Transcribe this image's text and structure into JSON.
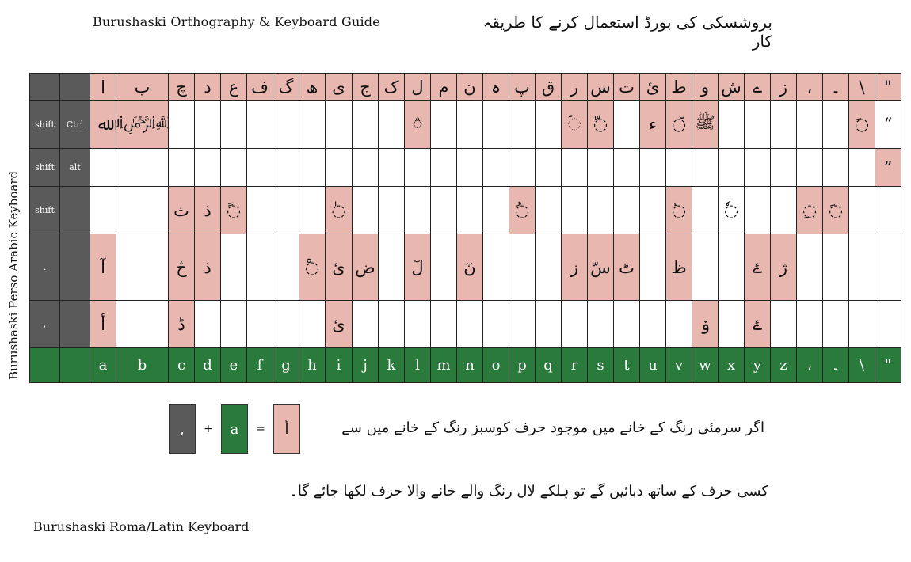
{
  "title_en": "Burushaski Orthography & Keyboard Guide",
  "title_ur": "بروشسکی کی بورڈ استعمال کرنے کا طریقہ کار",
  "side_label": "Burushaski Perso Arabic Keyboard",
  "footer": "Burushaski Roma/Latin Keyboard",
  "grid": {
    "rows": [
      {
        "mods": [
          "",
          ""
        ],
        "mod_style": "g",
        "cells": [
          {
            "t": "ا",
            "s": "p"
          },
          {
            "t": "ب",
            "s": "p"
          },
          {
            "t": "چ",
            "s": "p"
          },
          {
            "t": "د",
            "s": "p"
          },
          {
            "t": "ع",
            "s": "p"
          },
          {
            "t": "ف",
            "s": "p"
          },
          {
            "t": "گ",
            "s": "p"
          },
          {
            "t": "ھ",
            "s": "p"
          },
          {
            "t": "ی",
            "s": "p"
          },
          {
            "t": "ج",
            "s": "p"
          },
          {
            "t": "ک",
            "s": "p"
          },
          {
            "t": "ل",
            "s": "p"
          },
          {
            "t": "م",
            "s": "p"
          },
          {
            "t": "ن",
            "s": "p"
          },
          {
            "t": "ہ",
            "s": "p"
          },
          {
            "t": "پ",
            "s": "p"
          },
          {
            "t": "ق",
            "s": "p"
          },
          {
            "t": "ر",
            "s": "p"
          },
          {
            "t": "س",
            "s": "p"
          },
          {
            "t": "ت",
            "s": "p"
          },
          {
            "t": "ئ",
            "s": "p"
          },
          {
            "t": "ط",
            "s": "p"
          },
          {
            "t": "و",
            "s": "p"
          },
          {
            "t": "ش",
            "s": "p"
          },
          {
            "t": "ے",
            "s": "p"
          },
          {
            "t": "ز",
            "s": "p"
          },
          {
            "t": "،",
            "s": "p"
          },
          {
            "t": "۔",
            "s": "p"
          },
          {
            "t": "\\",
            "s": "p"
          },
          {
            "t": "\"",
            "s": "p"
          }
        ]
      },
      {
        "mods": [
          "shift",
          "Ctrl"
        ],
        "mod_style": "g",
        "cells": [
          {
            "t": "ﷲ",
            "s": "p"
          },
          {
            "t": "﷽",
            "s": "p"
          },
          {
            "t": "",
            "s": "w"
          },
          {
            "t": "",
            "s": "w"
          },
          {
            "t": "",
            "s": "w"
          },
          {
            "t": "",
            "s": "w"
          },
          {
            "t": "",
            "s": "w"
          },
          {
            "t": "",
            "s": "w"
          },
          {
            "t": "",
            "s": "w"
          },
          {
            "t": "",
            "s": "w"
          },
          {
            "t": "",
            "s": "w"
          },
          {
            "t": "◌ۨ",
            "s": "p"
          },
          {
            "t": "",
            "s": "w"
          },
          {
            "t": "",
            "s": "w"
          },
          {
            "t": "",
            "s": "w"
          },
          {
            "t": "",
            "s": "w"
          },
          {
            "t": "",
            "s": "w"
          },
          {
            "t": "◌ؐ",
            "s": "p"
          },
          {
            "t": "◌ّ",
            "s": "p"
          },
          {
            "t": "",
            "s": "w"
          },
          {
            "t": "ء",
            "s": "p"
          },
          {
            "t": "◌̆",
            "s": "p"
          },
          {
            "t": "ﷺ",
            "s": "p"
          },
          {
            "t": "",
            "s": "w"
          },
          {
            "t": "",
            "s": "w"
          },
          {
            "t": "",
            "s": "w"
          },
          {
            "t": "",
            "s": "w"
          },
          {
            "t": "",
            "s": "w"
          },
          {
            "t": "◌َ",
            "s": "p"
          },
          {
            "t": "“",
            "s": "w"
          }
        ]
      },
      {
        "mods": [
          "shift",
          "alt"
        ],
        "mod_style": "g",
        "cells": [
          {
            "t": "",
            "s": "w"
          },
          {
            "t": "",
            "s": "w"
          },
          {
            "t": "",
            "s": "w"
          },
          {
            "t": "",
            "s": "w"
          },
          {
            "t": "",
            "s": "w"
          },
          {
            "t": "",
            "s": "w"
          },
          {
            "t": "",
            "s": "w"
          },
          {
            "t": "",
            "s": "w"
          },
          {
            "t": "",
            "s": "w"
          },
          {
            "t": "",
            "s": "w"
          },
          {
            "t": "",
            "s": "w"
          },
          {
            "t": "",
            "s": "w"
          },
          {
            "t": "",
            "s": "w"
          },
          {
            "t": "",
            "s": "w"
          },
          {
            "t": "",
            "s": "w"
          },
          {
            "t": "",
            "s": "w"
          },
          {
            "t": "",
            "s": "w"
          },
          {
            "t": "",
            "s": "w"
          },
          {
            "t": "",
            "s": "w"
          },
          {
            "t": "",
            "s": "w"
          },
          {
            "t": "",
            "s": "w"
          },
          {
            "t": "",
            "s": "w"
          },
          {
            "t": "",
            "s": "w"
          },
          {
            "t": "",
            "s": "w"
          },
          {
            "t": "",
            "s": "w"
          },
          {
            "t": "",
            "s": "w"
          },
          {
            "t": "",
            "s": "w"
          },
          {
            "t": "",
            "s": "w"
          },
          {
            "t": "",
            "s": "w"
          },
          {
            "t": "”",
            "s": "p"
          }
        ]
      },
      {
        "mods": [
          "shift",
          ""
        ],
        "mod_style": "g",
        "cells": [
          {
            "t": "",
            "s": "w"
          },
          {
            "t": "",
            "s": "w"
          },
          {
            "t": "ث",
            "s": "p"
          },
          {
            "t": "ذ",
            "s": "p"
          },
          {
            "t": "◌ً",
            "s": "p"
          },
          {
            "t": "",
            "s": "w"
          },
          {
            "t": "",
            "s": "w"
          },
          {
            "t": "",
            "s": "w"
          },
          {
            "t": "◌ٰ",
            "s": "p"
          },
          {
            "t": "",
            "s": "w"
          },
          {
            "t": "",
            "s": "w"
          },
          {
            "t": "",
            "s": "w"
          },
          {
            "t": "",
            "s": "w"
          },
          {
            "t": "",
            "s": "w"
          },
          {
            "t": "",
            "s": "w"
          },
          {
            "t": "◌ُ",
            "s": "p"
          },
          {
            "t": "",
            "s": "w"
          },
          {
            "t": "",
            "s": "w"
          },
          {
            "t": "",
            "s": "w"
          },
          {
            "t": "",
            "s": "w"
          },
          {
            "t": "",
            "s": "w"
          },
          {
            "t": "◌ٔ",
            "s": "p"
          },
          {
            "t": "",
            "s": "w"
          },
          {
            "t": "◌ٗ",
            "s": "w"
          },
          {
            "t": "",
            "s": "w"
          },
          {
            "t": "",
            "s": "w"
          },
          {
            "t": "◌ِ",
            "s": "p"
          },
          {
            "t": "◌َ",
            "s": "p"
          },
          {
            "t": "",
            "s": "w"
          },
          {
            "t": "",
            "s": "w"
          }
        ]
      },
      {
        "mods": [
          ".",
          ""
        ],
        "mod_style": "g",
        "cells": [
          {
            "t": "آ",
            "s": "p"
          },
          {
            "t": "",
            "s": "w"
          },
          {
            "t": "څ",
            "s": "p"
          },
          {
            "t": "ذ",
            "s": "p"
          },
          {
            "t": "",
            "s": "w"
          },
          {
            "t": "",
            "s": "w"
          },
          {
            "t": "",
            "s": "w"
          },
          {
            "t": "◌ْ",
            "s": "p"
          },
          {
            "t": "ئ",
            "s": "p"
          },
          {
            "t": "ض",
            "s": "p"
          },
          {
            "t": "",
            "s": "w"
          },
          {
            "t": "لٓ",
            "s": "p"
          },
          {
            "t": "",
            "s": "w"
          },
          {
            "t": "نٓ",
            "s": "p"
          },
          {
            "t": "",
            "s": "w"
          },
          {
            "t": "",
            "s": "w"
          },
          {
            "t": "",
            "s": "w"
          },
          {
            "t": "ز",
            "s": "p"
          },
          {
            "t": "سّ",
            "s": "p"
          },
          {
            "t": "ٹ",
            "s": "p"
          },
          {
            "t": "",
            "s": "w"
          },
          {
            "t": "ظ",
            "s": "p"
          },
          {
            "t": "",
            "s": "w"
          },
          {
            "t": "",
            "s": "w"
          },
          {
            "t": "ۓ",
            "s": "p"
          },
          {
            "t": "ژ",
            "s": "p"
          },
          {
            "t": "",
            "s": "w"
          },
          {
            "t": "",
            "s": "w"
          },
          {
            "t": "",
            "s": "w"
          },
          {
            "t": "",
            "s": "w"
          }
        ]
      },
      {
        "mods": [
          ",",
          ""
        ],
        "mod_style": "g",
        "cells": [
          {
            "t": "أ",
            "s": "p"
          },
          {
            "t": "",
            "s": "w"
          },
          {
            "t": "ڈ",
            "s": "p"
          },
          {
            "t": "",
            "s": "w"
          },
          {
            "t": "",
            "s": "w"
          },
          {
            "t": "",
            "s": "w"
          },
          {
            "t": "",
            "s": "w"
          },
          {
            "t": "",
            "s": "w"
          },
          {
            "t": "ئ",
            "s": "p"
          },
          {
            "t": "",
            "s": "w"
          },
          {
            "t": "",
            "s": "w"
          },
          {
            "t": "",
            "s": "w"
          },
          {
            "t": "",
            "s": "w"
          },
          {
            "t": "",
            "s": "w"
          },
          {
            "t": "",
            "s": "w"
          },
          {
            "t": "",
            "s": "w"
          },
          {
            "t": "",
            "s": "w"
          },
          {
            "t": "",
            "s": "w"
          },
          {
            "t": "",
            "s": "w"
          },
          {
            "t": "",
            "s": "w"
          },
          {
            "t": "",
            "s": "w"
          },
          {
            "t": "",
            "s": "w"
          },
          {
            "t": "ۏ",
            "s": "p"
          },
          {
            "t": "",
            "s": "w"
          },
          {
            "t": "ۓ",
            "s": "p"
          },
          {
            "t": "",
            "s": "w"
          },
          {
            "t": "",
            "s": "w"
          },
          {
            "t": "",
            "s": "w"
          },
          {
            "t": "",
            "s": "w"
          },
          {
            "t": "",
            "s": "w"
          }
        ]
      },
      {
        "mods": [
          "",
          ""
        ],
        "mod_style": "gr",
        "cells": [
          {
            "t": "a",
            "s": "gr"
          },
          {
            "t": "b",
            "s": "gr"
          },
          {
            "t": "c",
            "s": "gr"
          },
          {
            "t": "d",
            "s": "gr"
          },
          {
            "t": "e",
            "s": "gr"
          },
          {
            "t": "f",
            "s": "gr"
          },
          {
            "t": "g",
            "s": "gr"
          },
          {
            "t": "h",
            "s": "gr"
          },
          {
            "t": "i",
            "s": "gr"
          },
          {
            "t": "j",
            "s": "gr"
          },
          {
            "t": "k",
            "s": "gr"
          },
          {
            "t": "l",
            "s": "gr"
          },
          {
            "t": "m",
            "s": "gr"
          },
          {
            "t": "n",
            "s": "gr"
          },
          {
            "t": "o",
            "s": "gr"
          },
          {
            "t": "p",
            "s": "gr"
          },
          {
            "t": "q",
            "s": "gr"
          },
          {
            "t": "r",
            "s": "gr"
          },
          {
            "t": "s",
            "s": "gr"
          },
          {
            "t": "t",
            "s": "gr"
          },
          {
            "t": "u",
            "s": "gr"
          },
          {
            "t": "v",
            "s": "gr"
          },
          {
            "t": "w",
            "s": "gr"
          },
          {
            "t": "x",
            "s": "gr"
          },
          {
            "t": "y",
            "s": "gr"
          },
          {
            "t": "z",
            "s": "gr"
          },
          {
            "t": "،",
            "s": "gr"
          },
          {
            "t": "۔",
            "s": "gr"
          },
          {
            "t": "\\",
            "s": "gr"
          },
          {
            "t": "\"",
            "s": "gr"
          }
        ]
      }
    ]
  },
  "example": {
    "grey": ",",
    "plus": "+",
    "green": "a",
    "equals": "=",
    "result": "أ"
  },
  "instruction_line1": "اگر سرمئی رنگ کے خانے میں موجود حرف کوسبز رنگ کے خانے میں سے",
  "instruction_line2": "کسی حرف کے ساتھ دبائیں گے تو ہلکے لال رنگ والے خانے والا حرف لکھا جائے گا۔",
  "colors": {
    "grey": "#5a5a5a",
    "pink": "#e8b7b0",
    "green": "#2a7a3b"
  }
}
